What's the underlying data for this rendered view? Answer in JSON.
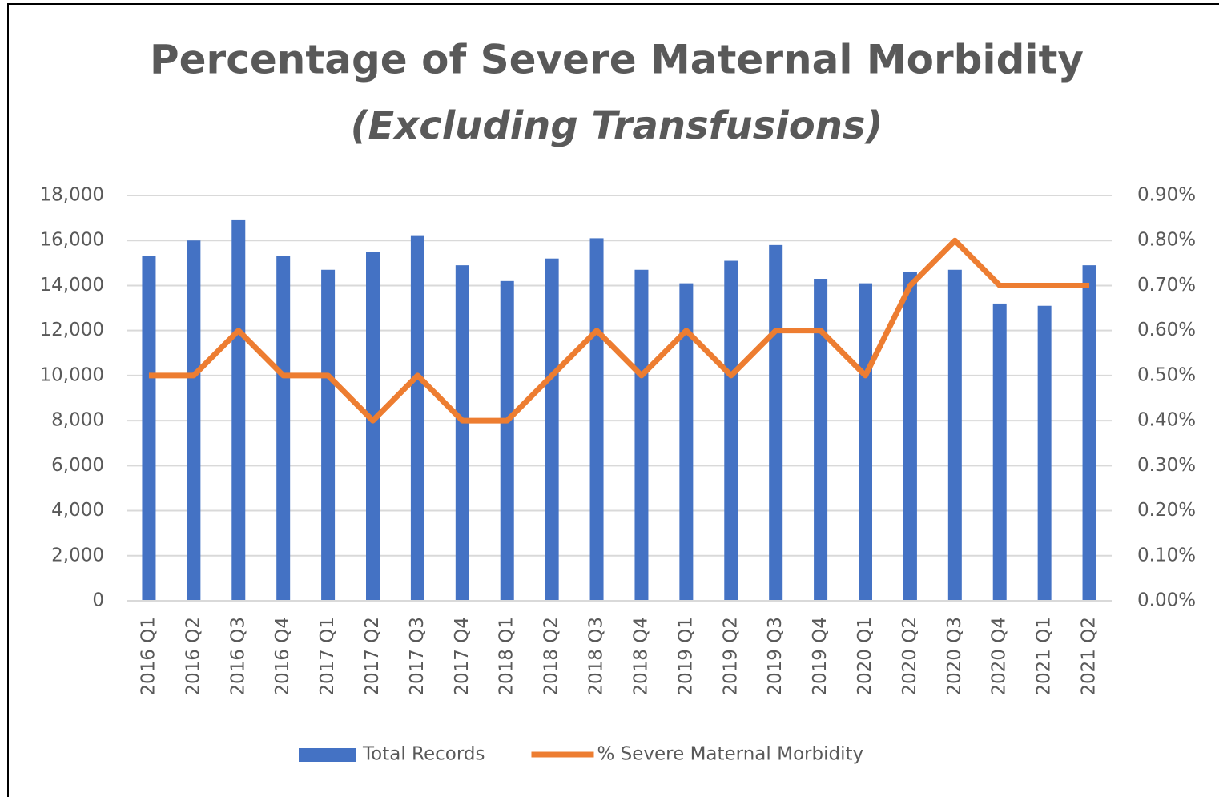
{
  "chart_data": {
    "type": "bar_line",
    "title": "Percentage of Severe Maternal Morbidity",
    "subtitle": "(Excluding Transfusions)",
    "categories": [
      "2016 Q1",
      "2016 Q2",
      "2016 Q3",
      "2016 Q4",
      "2017 Q1",
      "2017 Q2",
      "2017 Q3",
      "2017 Q4",
      "2018 Q1",
      "2018 Q2",
      "2018 Q3",
      "2018 Q4",
      "2019 Q1",
      "2019 Q2",
      "2019 Q3",
      "2019 Q4",
      "2020 Q1",
      "2020 Q2",
      "2020 Q3",
      "2020 Q4",
      "2021 Q1",
      "2021 Q2"
    ],
    "series": [
      {
        "name": "Total Records",
        "type": "bar",
        "color": "#4472c4",
        "values": [
          15300,
          16000,
          16900,
          15300,
          14700,
          15500,
          16200,
          14900,
          14200,
          15200,
          16100,
          14700,
          14100,
          15100,
          15800,
          14300,
          14100,
          14600,
          14700,
          13200,
          13100,
          14900
        ]
      },
      {
        "name": "% Severe Maternal Morbidity",
        "type": "line",
        "axis": "y2",
        "color": "#ed7d31",
        "values": [
          0.5,
          0.5,
          0.6,
          0.5,
          0.5,
          0.4,
          0.5,
          0.4,
          0.4,
          0.5,
          0.6,
          0.5,
          0.6,
          0.5,
          0.6,
          0.6,
          0.5,
          0.7,
          0.8,
          0.7,
          0.7,
          0.7
        ]
      }
    ],
    "ylim": [
      0,
      18000
    ],
    "yticks": [
      0,
      {
        "value": 2000,
        "label": "2,000"
      },
      {
        "value": 4000,
        "label": "4,000"
      },
      {
        "value": 6000,
        "label": "6,000"
      },
      {
        "value": 8000,
        "label": "8,000"
      },
      {
        "value": 10000,
        "label": "10,000"
      },
      {
        "value": 12000,
        "label": "12,000"
      },
      {
        "value": 14000,
        "label": "14,000"
      },
      {
        "value": 16000,
        "label": "16,000"
      },
      {
        "value": 18000,
        "label": "18,000"
      }
    ],
    "y2lim": [
      0,
      0.9
    ],
    "y2ticks": [
      {
        "value": 0,
        "label": "0.00%"
      },
      {
        "value": 0.1,
        "label": "0.10%"
      },
      {
        "value": 0.2,
        "label": "0.20%"
      },
      {
        "value": 0.3,
        "label": "0.30%"
      },
      {
        "value": 0.4,
        "label": "0.40%"
      },
      {
        "value": 0.5,
        "label": "0.50%"
      },
      {
        "value": 0.6,
        "label": "0.60%"
      },
      {
        "value": 0.7,
        "label": "0.70%"
      },
      {
        "value": 0.8,
        "label": "0.80%"
      },
      {
        "value": 0.9,
        "label": "0.90%"
      }
    ],
    "grid": true,
    "legend": "bottom"
  }
}
